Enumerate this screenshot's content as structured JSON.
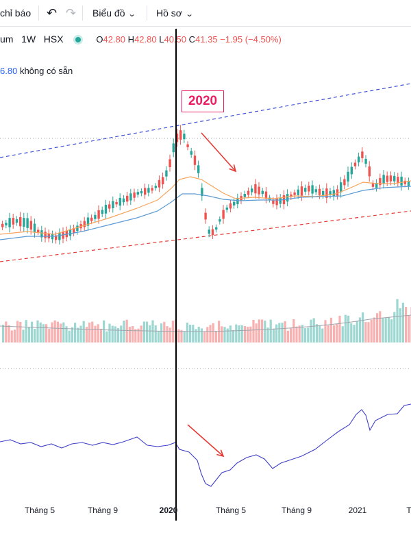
{
  "toolbar": {
    "indicators_label": "chỉ báo",
    "undo_icon": "undo-icon",
    "redo_icon": "redo-icon",
    "chart_type_label": "Biểu đồ",
    "profile_label": "Hồ sơ"
  },
  "legend": {
    "symbol_tail": "um",
    "interval": "1W",
    "exchange": "HSX",
    "open_label": "O",
    "open": "42.80",
    "high_label": "H",
    "high": "42.80",
    "low_label": "L",
    "low": "40.50",
    "close_label": "C",
    "close": "41.35",
    "change": "−1.95 (−4.50%)",
    "indicator_value": "6.80",
    "indicator_note": "không có sẵn"
  },
  "annotations": {
    "year_badge": "2020"
  },
  "x_axis": {
    "ticks": [
      {
        "label": "Tháng 5",
        "active": false
      },
      {
        "label": "Tháng 9",
        "active": false
      },
      {
        "label": "2020",
        "active": true
      },
      {
        "label": "Tháng 5",
        "active": false
      },
      {
        "label": "Tháng 9",
        "active": false
      },
      {
        "label": "2021",
        "active": false
      },
      {
        "label": "T",
        "active": false
      }
    ]
  },
  "colors": {
    "up": "#26a69a",
    "down": "#ef5350",
    "ma_orange": "#f7a35c",
    "ma_blue": "#5b9bd5",
    "channel_upper": "#3f51d5",
    "channel_lower": "#e53935",
    "indicator_line": "#3f3fc8",
    "arrow": "#e53935",
    "badge": "#e91e63"
  }
}
